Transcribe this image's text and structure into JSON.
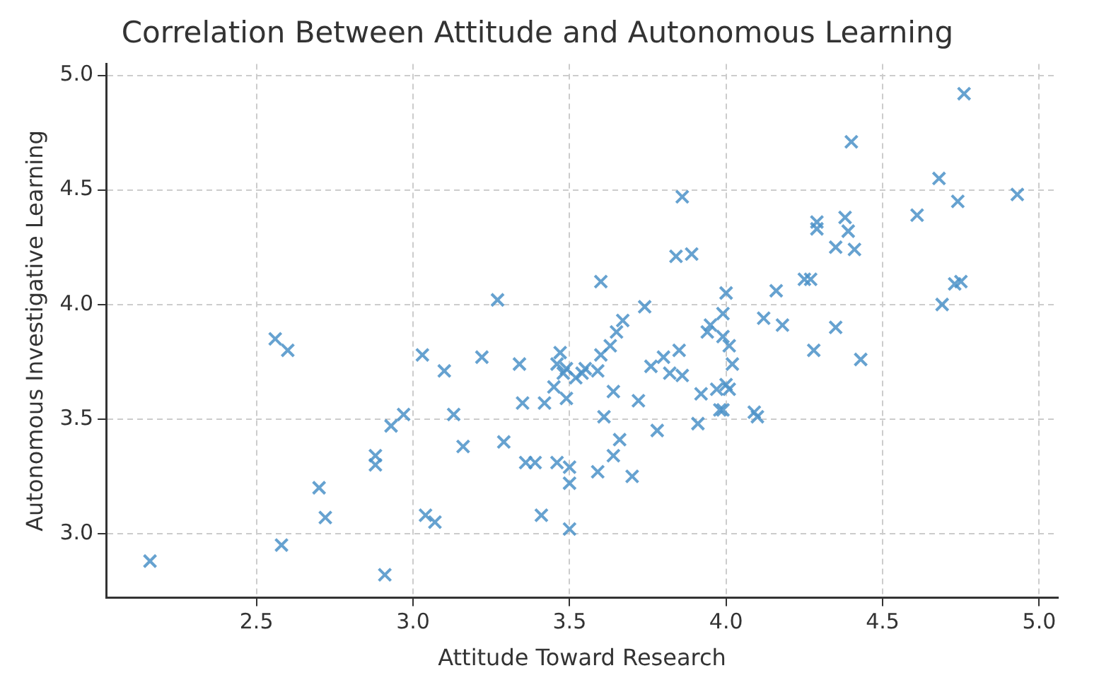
{
  "chart_data": {
    "type": "scatter",
    "title": "Correlation Between Attitude and Autonomous Learning",
    "xlabel": "Attitude Toward Research",
    "ylabel": "Autonomous Investigative Learning",
    "marker": "cross",
    "grid": true,
    "xlim": [
      2.02,
      5.06
    ],
    "ylim": [
      2.72,
      5.05
    ],
    "xticks": [
      {
        "value": 2.5,
        "label": "2.5"
      },
      {
        "value": 3,
        "label": "3.0"
      },
      {
        "value": 3.5,
        "label": "3.5"
      },
      {
        "value": 4,
        "label": "4.0"
      },
      {
        "value": 4.5,
        "label": "4.5"
      },
      {
        "value": 5,
        "label": "5.0"
      }
    ],
    "yticks": [
      {
        "value": 3,
        "label": "3.0"
      },
      {
        "value": 3.5,
        "label": "3.5"
      },
      {
        "value": 4,
        "label": "4.0"
      },
      {
        "value": 4.5,
        "label": "4.5"
      },
      {
        "value": 5,
        "label": "5.0"
      }
    ],
    "series": [
      {
        "color": "#4b92c8",
        "x": [
          2.16,
          2.56,
          2.6,
          2.58,
          2.7,
          2.72,
          2.88,
          2.88,
          2.91,
          2.93,
          2.97,
          3.03,
          3.04,
          3.07,
          3.1,
          3.13,
          3.16,
          3.22,
          3.27,
          3.29,
          3.34,
          3.35,
          3.36,
          3.39,
          3.42,
          3.41,
          3.45,
          3.46,
          3.46,
          3.47,
          3.48,
          3.49,
          3.49,
          3.5,
          3.5,
          3.5,
          3.52,
          3.54,
          3.55,
          3.59,
          3.59,
          3.6,
          3.6,
          3.61,
          3.63,
          3.64,
          3.64,
          3.65,
          3.66,
          3.67,
          3.7,
          3.72,
          3.74,
          3.76,
          3.78,
          3.8,
          3.82,
          3.84,
          3.85,
          3.86,
          3.86,
          3.89,
          3.91,
          3.92,
          3.94,
          3.95,
          3.97,
          3.98,
          3.99,
          3.99,
          3.99,
          4.0,
          4.0,
          4.01,
          4.02,
          4.01,
          4.09,
          4.1,
          4.12,
          4.16,
          4.18,
          4.25,
          4.27,
          4.28,
          4.29,
          4.29,
          4.35,
          4.35,
          4.38,
          4.39,
          4.4,
          4.41,
          4.43,
          4.61,
          4.68,
          4.69,
          4.73,
          4.75,
          4.74,
          4.76,
          4.93
        ],
        "values": [
          2.88,
          3.85,
          3.8,
          2.95,
          3.2,
          3.07,
          3.3,
          3.34,
          2.82,
          3.47,
          3.52,
          3.78,
          3.08,
          3.05,
          3.71,
          3.52,
          3.38,
          3.77,
          4.02,
          3.4,
          3.74,
          3.57,
          3.31,
          3.31,
          3.57,
          3.08,
          3.64,
          3.74,
          3.31,
          3.79,
          3.7,
          3.72,
          3.59,
          3.29,
          3.22,
          3.02,
          3.68,
          3.7,
          3.72,
          3.71,
          3.27,
          3.78,
          4.1,
          3.51,
          3.82,
          3.34,
          3.62,
          3.88,
          3.41,
          3.93,
          3.25,
          3.58,
          3.99,
          3.73,
          3.45,
          3.77,
          3.7,
          4.21,
          3.8,
          3.69,
          4.47,
          4.22,
          3.48,
          3.61,
          3.88,
          3.91,
          3.63,
          3.54,
          3.54,
          3.86,
          3.96,
          4.05,
          3.65,
          3.63,
          3.74,
          3.82,
          3.53,
          3.51,
          3.94,
          4.06,
          3.91,
          4.11,
          4.11,
          3.8,
          4.36,
          4.33,
          3.9,
          4.25,
          4.38,
          4.32,
          4.71,
          4.24,
          3.76,
          4.39,
          4.55,
          4.0,
          4.09,
          4.1,
          4.45,
          4.92,
          4.48
        ]
      }
    ]
  }
}
